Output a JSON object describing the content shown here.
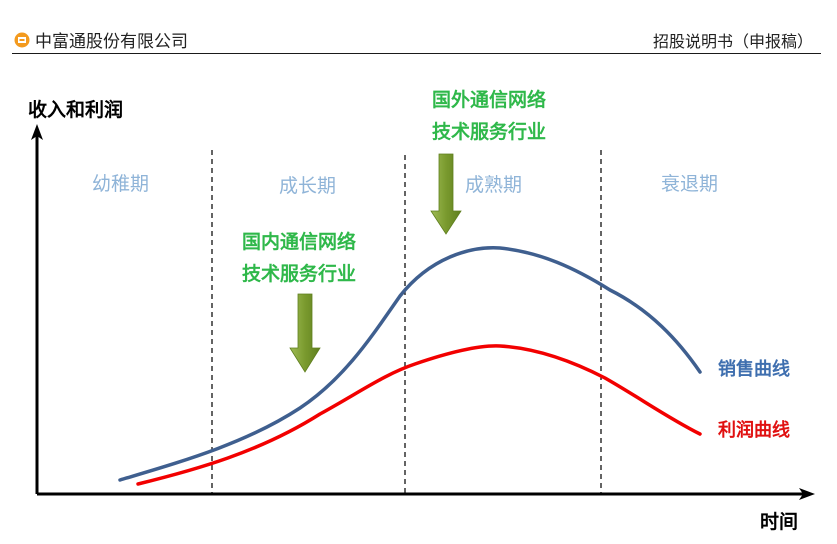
{
  "header": {
    "company": "中富通股份有限公司",
    "document_title": "招股说明书（申报稿）"
  },
  "diagram": {
    "y_axis_label": "收入和利润",
    "x_axis_label": "时间",
    "stages": [
      "幼稚期",
      "成长期",
      "成熟期",
      "衰退期"
    ],
    "annotations": {
      "domestic": [
        "国内通信网络",
        "技术服务行业"
      ],
      "foreign": [
        "国外通信网络",
        "技术服务行业"
      ]
    },
    "legend": {
      "sales": "销售曲线",
      "profit": "利润曲线"
    }
  },
  "colors": {
    "stage_label": "#8fb4d8",
    "annotation": "#2fb84a",
    "arrow_fill": "#7a9a2e",
    "sales_curve": "#3f5f8f",
    "profit_curve": "#f20000",
    "sales_legend": "#3f6faf",
    "profit_legend": "#e01010",
    "axis": "#000000",
    "logo": "#f39a1e"
  }
}
